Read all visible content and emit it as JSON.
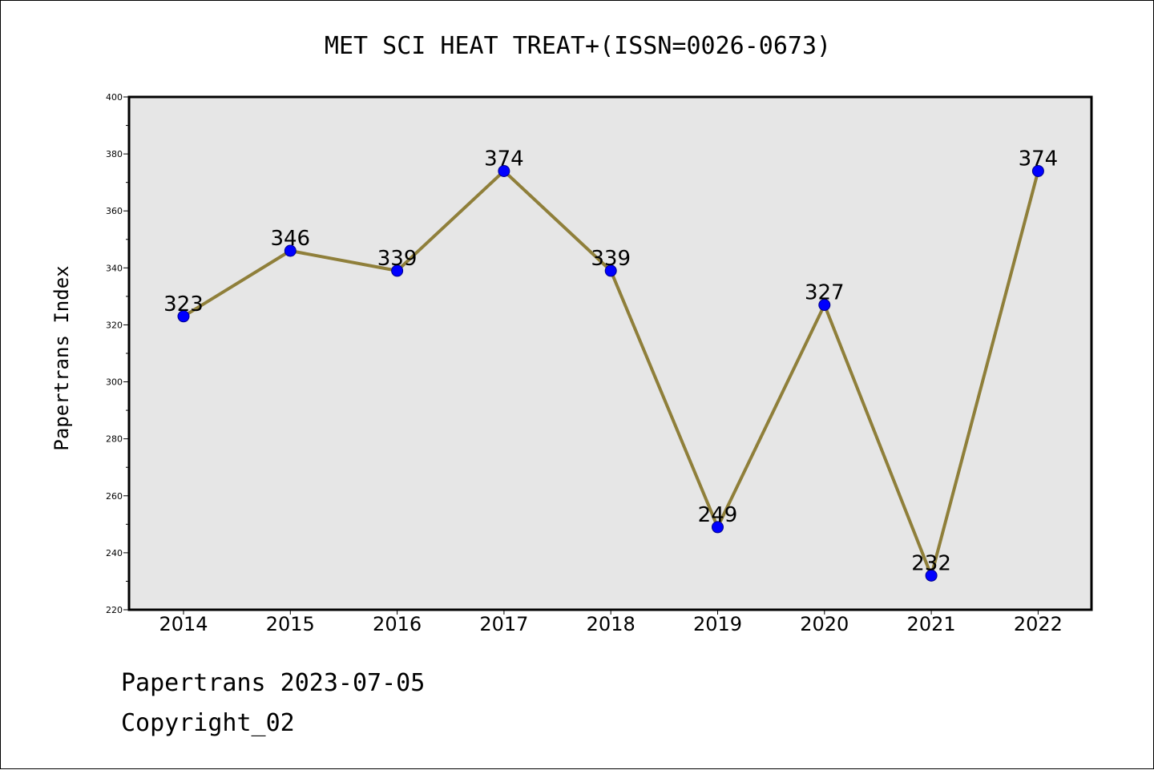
{
  "chart_data": {
    "type": "line",
    "title": "MET SCI HEAT TREAT+(ISSN=0026-0673)",
    "xlabel": "",
    "ylabel": "Papertrans Index",
    "categories": [
      "2014",
      "2015",
      "2016",
      "2017",
      "2018",
      "2019",
      "2020",
      "2021",
      "2022"
    ],
    "values": [
      323,
      346,
      339,
      374,
      339,
      249,
      327,
      232,
      374
    ],
    "ylim": [
      220,
      400
    ],
    "yticks": [
      220,
      240,
      260,
      280,
      300,
      320,
      340,
      360,
      380,
      400
    ],
    "grid": false,
    "colors": {
      "line": "#8f7f3a",
      "marker": "#0000ff",
      "plot_bg": "#e6e6e6"
    }
  },
  "footer": {
    "line1": "Papertrans 2023-07-05",
    "line2": "Copyright_02"
  }
}
